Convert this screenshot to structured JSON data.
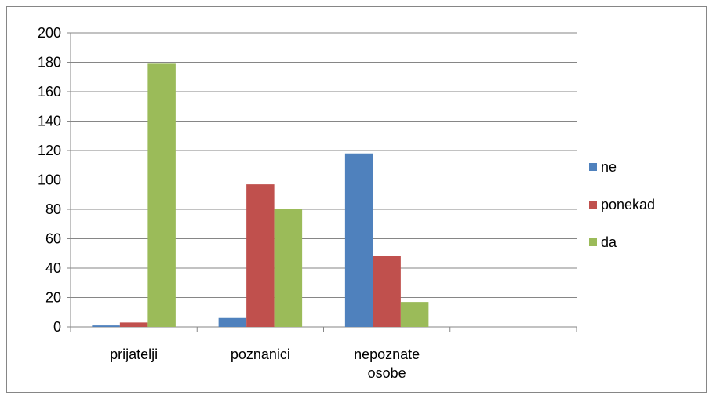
{
  "chart_data": {
    "type": "bar",
    "title": "",
    "xlabel": "",
    "ylabel": "",
    "categories": [
      [
        "prijatelji"
      ],
      [
        "poznanici"
      ],
      [
        "nepoznate",
        "osobe"
      ],
      [
        ""
      ]
    ],
    "series": [
      {
        "name": "ne",
        "color": "#4f81bd",
        "values": [
          1,
          6,
          118,
          null
        ]
      },
      {
        "name": "ponekad",
        "color": "#c0504d",
        "values": [
          3,
          97,
          48,
          null
        ]
      },
      {
        "name": "da",
        "color": "#9bbb59",
        "values": [
          179,
          80,
          17,
          null
        ]
      }
    ],
    "ylim": [
      0,
      200
    ],
    "yticks": [
      0,
      20,
      40,
      60,
      80,
      100,
      120,
      140,
      160,
      180,
      200
    ],
    "grid": true,
    "legend_position": "right"
  }
}
